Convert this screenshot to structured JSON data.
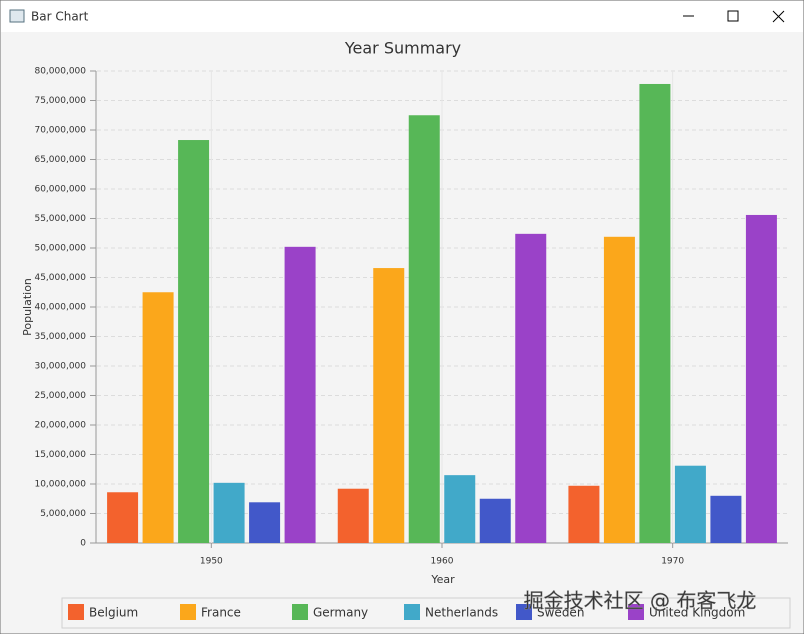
{
  "window_title": "Bar Chart",
  "watermark": "掘金技术社区 @ 布客飞龙",
  "chart_data": {
    "type": "bar",
    "title": "Year Summary",
    "x_label": "Year",
    "y_label": "Population",
    "categories": [
      "1950",
      "1960",
      "1970"
    ],
    "series": [
      {
        "name": "Belgium",
        "color": "#f3622d",
        "values": [
          8600000,
          9200000,
          9700000
        ]
      },
      {
        "name": "France",
        "color": "#fba71b",
        "values": [
          42500000,
          46600000,
          51900000
        ]
      },
      {
        "name": "Germany",
        "color": "#57b757",
        "values": [
          68300000,
          72500000,
          77800000
        ]
      },
      {
        "name": "Netherlands",
        "color": "#41a9c9",
        "values": [
          10200000,
          11500000,
          13100000
        ]
      },
      {
        "name": "Sweden",
        "color": "#4258c9",
        "values": [
          6900000,
          7500000,
          8000000
        ]
      },
      {
        "name": "United Kingdom",
        "color": "#9a42c8",
        "values": [
          50200000,
          52400000,
          55600000
        ]
      }
    ],
    "ylim": [
      0,
      80000000
    ],
    "yticks": [
      0,
      {
        "value": 5000000,
        "label": "5,000,000"
      },
      {
        "value": 10000000,
        "label": "10,000,000"
      },
      {
        "value": 15000000,
        "label": "15,000,000"
      },
      {
        "value": 20000000,
        "label": "20,000,000"
      },
      {
        "value": 25000000,
        "label": "25,000,000"
      },
      {
        "value": 30000000,
        "label": "30,000,000"
      },
      {
        "value": 35000000,
        "label": "35,000,000"
      },
      {
        "value": 40000000,
        "label": "40,000,000"
      },
      {
        "value": 45000000,
        "label": "45,000,000"
      },
      {
        "value": 50000000,
        "label": "50,000,000"
      },
      {
        "value": 55000000,
        "label": "55,000,000"
      },
      {
        "value": 60000000,
        "label": "60,000,000"
      },
      {
        "value": 65000000,
        "label": "65,000,000"
      },
      {
        "value": 70000000,
        "label": "70,000,000"
      },
      {
        "value": 75000000,
        "label": "75,000,000"
      },
      {
        "value": 80000000,
        "label": "80,000,000"
      }
    ],
    "grid": true,
    "legend": "bottom"
  }
}
